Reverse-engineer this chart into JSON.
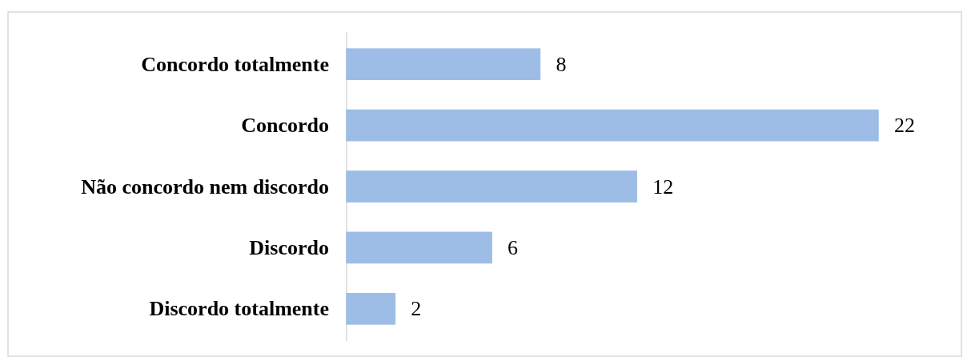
{
  "chart_data": {
    "type": "bar",
    "orientation": "horizontal",
    "categories": [
      "Concordo totalmente",
      "Concordo",
      "Não concordo nem discordo",
      "Discordo",
      "Discordo totalmente"
    ],
    "values": [
      8,
      22,
      12,
      6,
      2
    ],
    "color": "#9dbde6",
    "data_labels": true
  }
}
